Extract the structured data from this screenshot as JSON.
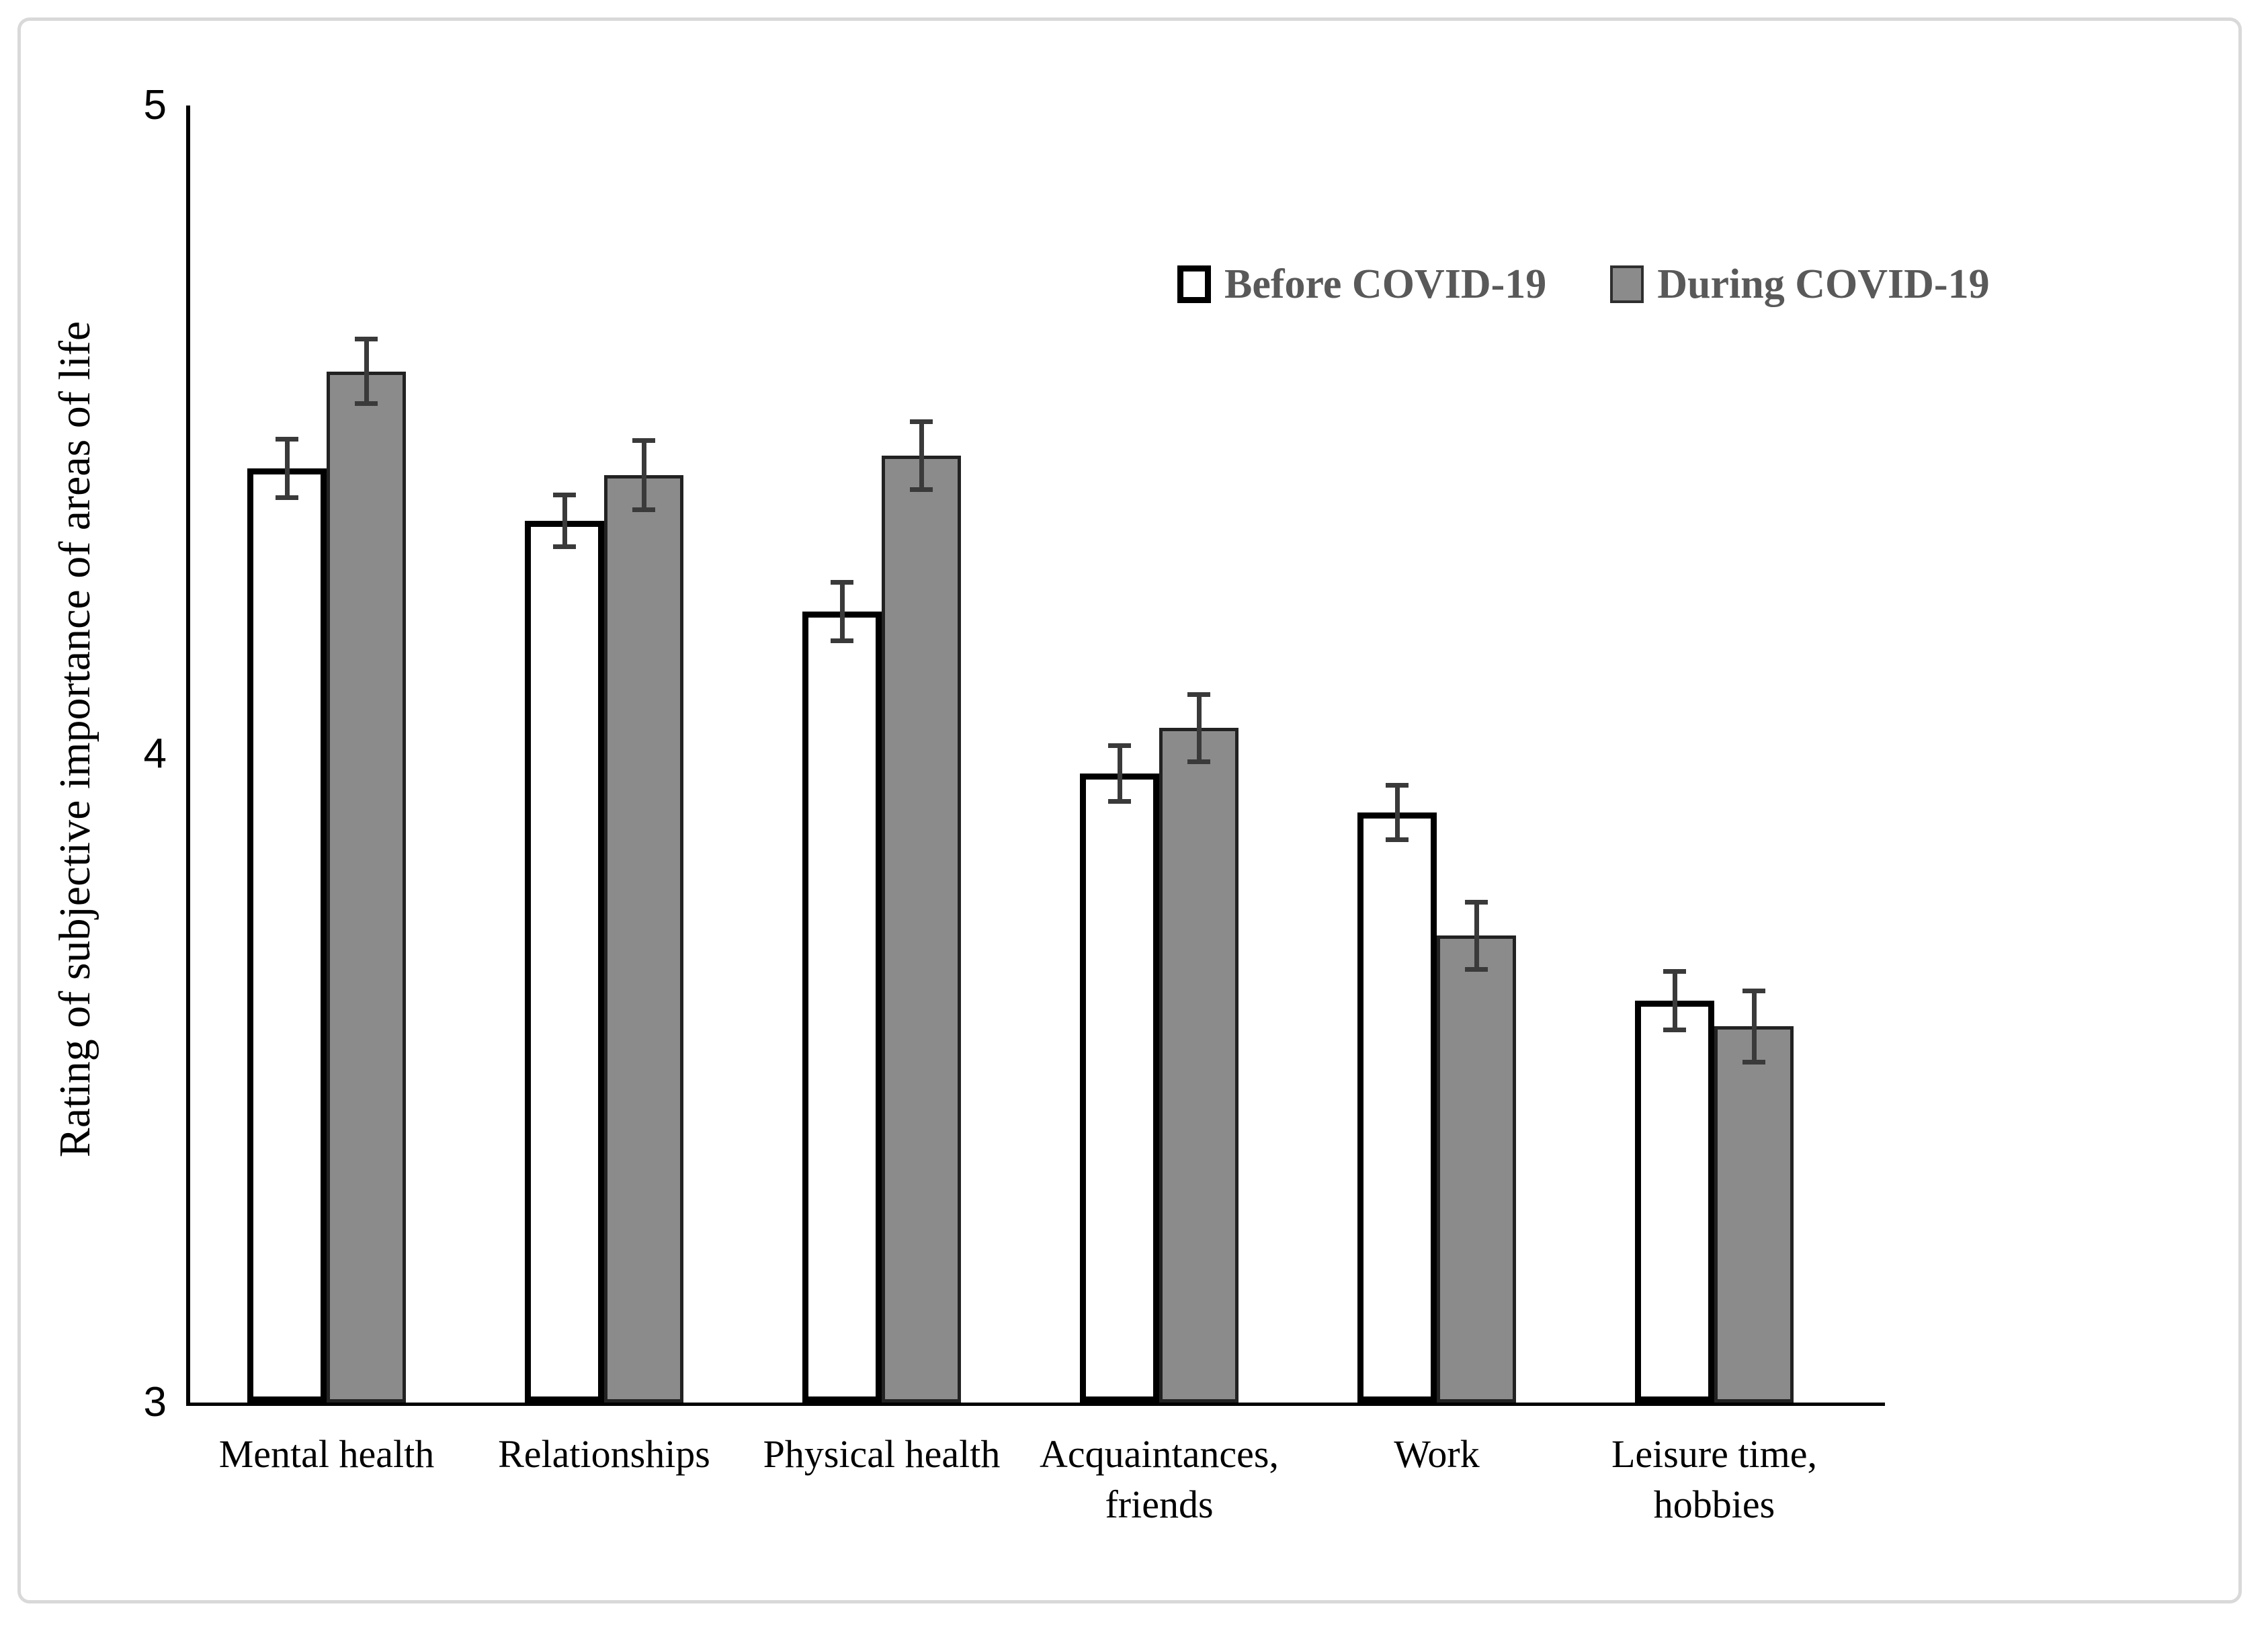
{
  "figure": {
    "y_axis_title": "Rating of subjective importance of areas of life",
    "border_color": "#d9d9d9"
  },
  "legend": {
    "items": [
      {
        "label": "Before COVID-19",
        "swatch": "white-outline"
      },
      {
        "label": "During COVID-19",
        "swatch": "gray-fill"
      }
    ]
  },
  "colors": {
    "before_fill": "#ffffff",
    "before_border": "#000000",
    "during_fill": "#8b8b8b",
    "error_bar": "#3a3a3a",
    "legend_text": "#595959",
    "axis": "#000000"
  },
  "chart_data": {
    "type": "bar",
    "title": "",
    "xlabel": "",
    "ylabel": "Rating of subjective importance of areas of life",
    "ylim": [
      3,
      5
    ],
    "yticks": [
      3,
      4,
      5
    ],
    "grid": false,
    "legend_position": "top-right",
    "categories": [
      "Mental health",
      "Relationships",
      "Physical health",
      "Acquaintances,\nfriends",
      "Work",
      "Leisure time,\nhobbies"
    ],
    "series": [
      {
        "name": "Before COVID-19",
        "style": "white",
        "values": [
          4.44,
          4.36,
          4.22,
          3.97,
          3.91,
          3.62
        ],
        "errors": [
          0.045,
          0.04,
          0.045,
          0.043,
          0.042,
          0.045
        ]
      },
      {
        "name": "During COVID-19",
        "style": "gray",
        "values": [
          4.59,
          4.43,
          4.46,
          4.04,
          3.72,
          3.58
        ],
        "errors": [
          0.05,
          0.053,
          0.052,
          0.052,
          0.052,
          0.055
        ]
      }
    ]
  }
}
